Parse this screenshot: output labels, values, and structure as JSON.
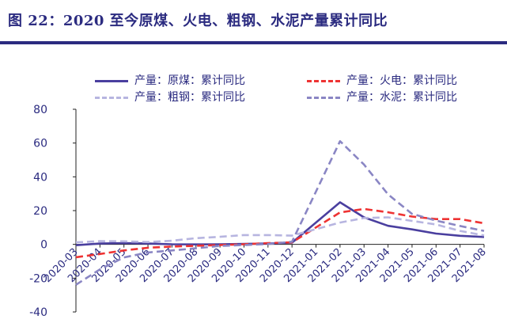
{
  "header": {
    "title": "图 22：2020 至今原煤、火电、粗钢、水泥产量累计同比"
  },
  "colors": {
    "title": "#2b2b80",
    "axis_text": "#2b2b80"
  },
  "legend": {
    "placement": "top",
    "items": [
      {
        "label": "产量：原煤：累计同比",
        "color": "#4a3f9f",
        "style": "solid"
      },
      {
        "label": "产量：火电：累计同比",
        "color": "#ee3333",
        "style": "dashed"
      },
      {
        "label": "产量：粗钢：累计同比",
        "color": "#b7b5e0",
        "style": "dashed"
      },
      {
        "label": "产量：水泥：累计同比",
        "color": "#8a86c4",
        "style": "dashed"
      }
    ]
  },
  "chart_data": {
    "type": "line",
    "title": "图 22：2020 至今原煤、火电、粗钢、水泥产量累计同比",
    "xlabel": "",
    "ylabel": "",
    "ylim": [
      -40,
      80
    ],
    "yticks": [
      -40,
      -20,
      0,
      20,
      40,
      60,
      80
    ],
    "grid": false,
    "legend_placement": "top",
    "categories": [
      "2020-03",
      "2020-04",
      "2020-05",
      "2020-06",
      "2020-07",
      "2020-08",
      "2020-09",
      "2020-10",
      "2020-11",
      "2020-12",
      "2021-01",
      "2021-02",
      "2021-03",
      "2021-04",
      "2021-05",
      "2021-06",
      "2021-07",
      "2021-08"
    ],
    "series": [
      {
        "name": "产量：原煤：累计同比",
        "color": "#4a3f9f",
        "style": "solid",
        "values": [
          -0.5,
          0.5,
          0.8,
          0.5,
          0.1,
          0.0,
          0.1,
          0.3,
          0.5,
          1.0,
          null,
          24.9,
          16.0,
          11.0,
          8.9,
          6.4,
          5.1,
          4.4
        ]
      },
      {
        "name": "产量：火电：累计同比",
        "color": "#ee3333",
        "style": "dashed",
        "values": [
          -7.6,
          -5.7,
          -3.6,
          -2.0,
          -1.3,
          -0.8,
          -0.4,
          0.1,
          0.8,
          1.2,
          null,
          18.9,
          21.0,
          19.0,
          16.5,
          15.0,
          15.0,
          12.5
        ]
      },
      {
        "name": "产量：粗钢：累计同比",
        "color": "#b7b5e0",
        "style": "dashed",
        "values": [
          1.2,
          1.9,
          1.8,
          1.4,
          2.2,
          3.7,
          4.5,
          5.5,
          5.5,
          5.2,
          null,
          12.9,
          15.6,
          16.0,
          13.9,
          11.8,
          8.0,
          5.3
        ]
      },
      {
        "name": "产量：水泥：累计同比",
        "color": "#8a86c4",
        "style": "dashed",
        "values": [
          -23.9,
          -14.8,
          -7.7,
          -4.8,
          -3.6,
          -2.3,
          -0.9,
          -0.4,
          0.2,
          1.6,
          null,
          61.1,
          47.3,
          29.6,
          18.1,
          14.1,
          10.9,
          8.0
        ]
      }
    ]
  }
}
